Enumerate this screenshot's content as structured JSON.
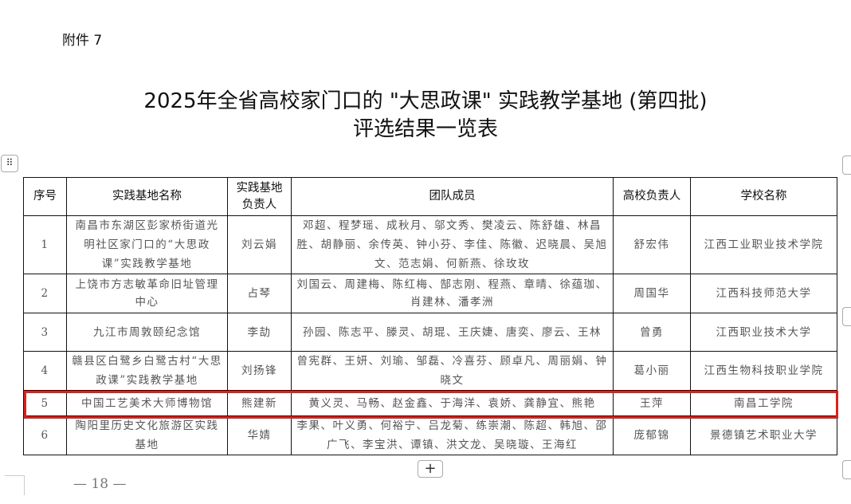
{
  "attachment_label": "附件 7",
  "title_line1": "2025年全省高校家门口的 \"大思政课\" 实践教学基地 (第四批)",
  "title_line2": "评选结果一览表",
  "table": {
    "headers": [
      "序号",
      "实践基地名称",
      "实践基地负责人",
      "团队成员",
      "高校负责人",
      "学校名称"
    ],
    "rows": [
      {
        "no": "1",
        "base": "南昌市东湖区彭家桥街道光明社区家门口的“大思政课”实践教学基地",
        "base_leader": "刘云娟",
        "members": "邓超、程梦瑶、成秋月、邬文秀、樊凌云、陈舒雄、林昌胜、胡静丽、余传英、钟小芬、李佳、陈徽、迟晓晨、吴旭文、范志娟、何新燕、徐玫玫",
        "school_leader": "舒宏伟",
        "school": "江西工业职业技术学院"
      },
      {
        "no": "2",
        "base": "上饶市方志敏革命旧址管理中心",
        "base_leader": "占琴",
        "members": "刘国云、周建梅、陈红梅、郜志刚、程燕、章晴、徐蕴珈、肖建林、潘孝洲",
        "school_leader": "周国华",
        "school": "江西科技师范大学"
      },
      {
        "no": "3",
        "base": "九江市周敦颐纪念馆",
        "base_leader": "李劼",
        "members": "孙园、陈志平、滕灵、胡琨、王庆婕、唐奕、廖云、王林",
        "school_leader": "曾勇",
        "school": "江西职业技术大学"
      },
      {
        "no": "4",
        "base": "赣县区白鹭乡白鹭古村“大思政课”实践教学基地",
        "base_leader": "刘扬锋",
        "members": "曾宪群、王妍、刘瑜、邹磊、冷喜芬、顾卓凡、周丽娟、钟晓文",
        "school_leader": "葛小丽",
        "school": "江西生物科技职业学院"
      },
      {
        "no": "5",
        "base": "中国工艺美术大师博物馆",
        "base_leader": "熊建新",
        "members": "黄义灵、马畅、赵金鑫、于海洋、袁娇、龚静宜、熊艳",
        "school_leader": "王萍",
        "school": "南昌工学院"
      },
      {
        "no": "6",
        "base": "陶阳里历史文化旅游区实践基地",
        "base_leader": "华婧",
        "members": "李果、叶义勇、何裕宁、吕龙菊、练崇潮、陈超、韩旭、邵广飞、李宝洪、谭镇、洪文龙、吴晓璇、王海红",
        "school_leader": "庞郁锦",
        "school": "景德镇艺术职业大学"
      }
    ]
  },
  "highlight_color": "#e0201a",
  "page_number": "— 18 —",
  "controls": {
    "drag_handle_icon": "⠿",
    "add_row_icon": "+"
  }
}
